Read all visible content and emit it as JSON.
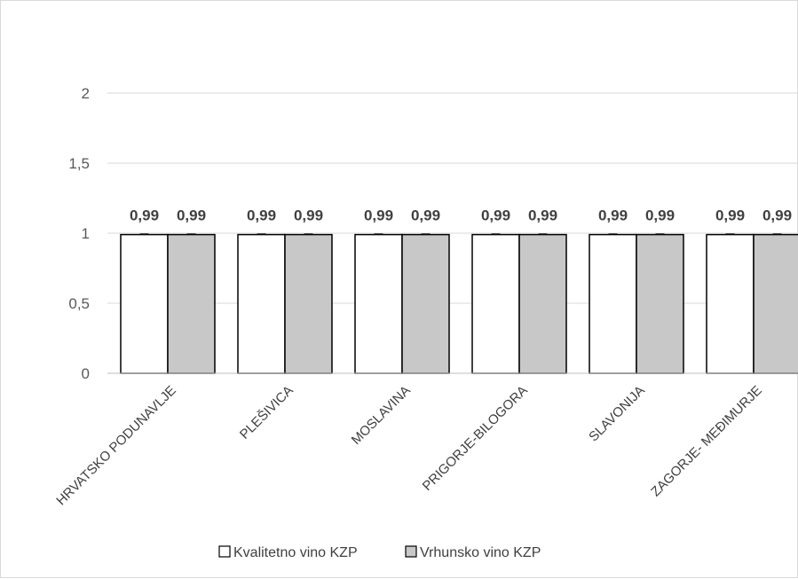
{
  "chart_data": {
    "type": "bar",
    "categories": [
      "HRVATSKO PODUNAVLJE",
      "PLEŠIVICA",
      "MOSLAVINA",
      "PRIGORJE-BILOGORA",
      "SLAVONIJA",
      "ZAGORJE- MEĐIMURJE"
    ],
    "series": [
      {
        "name": "Kvalitetno vino KZP",
        "values": [
          0.99,
          0.99,
          0.99,
          0.99,
          0.99,
          0.99
        ],
        "labels": [
          "0,99",
          "0,99",
          "0,99",
          "0,99",
          "0,99",
          "0,99"
        ],
        "color": "#ffffff"
      },
      {
        "name": "Vrhunsko vino KZP",
        "values": [
          0.99,
          0.99,
          0.99,
          0.99,
          0.99,
          0.99
        ],
        "labels": [
          "0,99",
          "0,99",
          "0,99",
          "0,99",
          "0,99",
          "0,99"
        ],
        "color": "#c8c8c8"
      }
    ],
    "yticks": [
      "0",
      "0,5",
      "1",
      "1,5",
      "2"
    ],
    "ytick_values": [
      0,
      0.5,
      1,
      1.5,
      2
    ],
    "ylim": [
      0,
      2
    ],
    "grid": true,
    "legend_position": "bottom",
    "title": "",
    "xlabel": "",
    "ylabel": ""
  }
}
